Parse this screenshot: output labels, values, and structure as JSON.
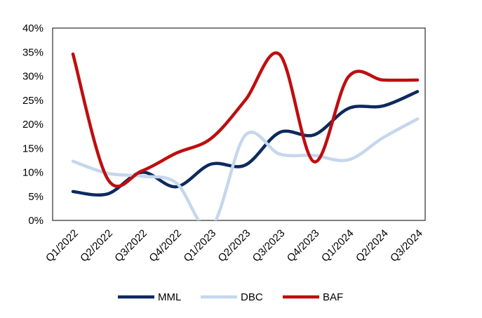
{
  "chart_data": {
    "type": "line",
    "smooth": true,
    "categories": [
      "Q1/2022",
      "Q2/2022",
      "Q3/2022",
      "Q4/2022",
      "Q1/2023",
      "Q2/2023",
      "Q3/2023",
      "Q4/2023",
      "Q1/2024",
      "Q2/2024",
      "Q3/2024"
    ],
    "series": [
      {
        "name": "MML",
        "color": "#0d2a5e",
        "values": [
          6.0,
          5.5,
          10.0,
          7.0,
          11.7,
          11.5,
          18.3,
          17.8,
          23.3,
          23.8,
          26.8
        ]
      },
      {
        "name": "DBC",
        "color": "#c6d7ec",
        "values": [
          12.3,
          9.8,
          9.2,
          7.8,
          -1.5,
          17.7,
          13.8,
          13.5,
          12.6,
          17.2,
          21.1
        ]
      },
      {
        "name": "BAF",
        "color": "#be0e10",
        "values": [
          34.6,
          8.7,
          10.3,
          14.0,
          17.0,
          25.0,
          34.5,
          12.2,
          29.9,
          29.2,
          29.2
        ]
      }
    ],
    "ylim": [
      0,
      40
    ],
    "yticks": [
      "0%",
      "5%",
      "10%",
      "15%",
      "20%",
      "25%",
      "30%",
      "35%",
      "40%"
    ],
    "ytick_values": [
      0,
      5,
      10,
      15,
      20,
      25,
      30,
      35,
      40
    ],
    "grid": false,
    "legend_position": "bottom",
    "title": "",
    "xlabel": "",
    "ylabel": ""
  }
}
